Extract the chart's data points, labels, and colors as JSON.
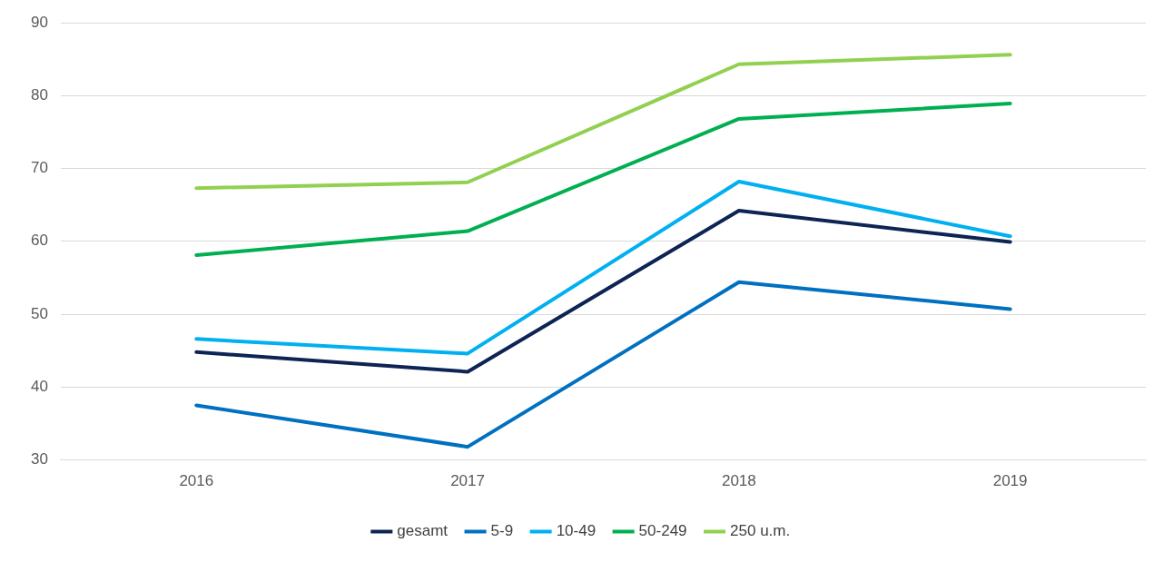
{
  "chart_data": {
    "type": "line",
    "categories": [
      "2016",
      "2017",
      "2018",
      "2019"
    ],
    "series": [
      {
        "name": "gesamt",
        "color": "#0d2454",
        "values": [
          44.8,
          42.1,
          64.2,
          59.9
        ]
      },
      {
        "name": "5-9",
        "color": "#0070c0",
        "values": [
          37.5,
          31.8,
          54.4,
          50.7
        ]
      },
      {
        "name": "10-49",
        "color": "#00b0f0",
        "values": [
          46.6,
          44.6,
          68.2,
          60.7
        ]
      },
      {
        "name": "50-249",
        "color": "#00b050",
        "values": [
          58.1,
          61.4,
          76.8,
          78.9
        ]
      },
      {
        "name": "250 u.m.",
        "color": "#92d050",
        "values": [
          67.3,
          68.1,
          84.3,
          85.6
        ]
      }
    ],
    "ylim": [
      30,
      90
    ],
    "yticks": [
      30,
      40,
      50,
      60,
      70,
      80,
      90
    ],
    "grid": "y",
    "legend": "bottom",
    "marker": "none",
    "line_style": "solid"
  }
}
